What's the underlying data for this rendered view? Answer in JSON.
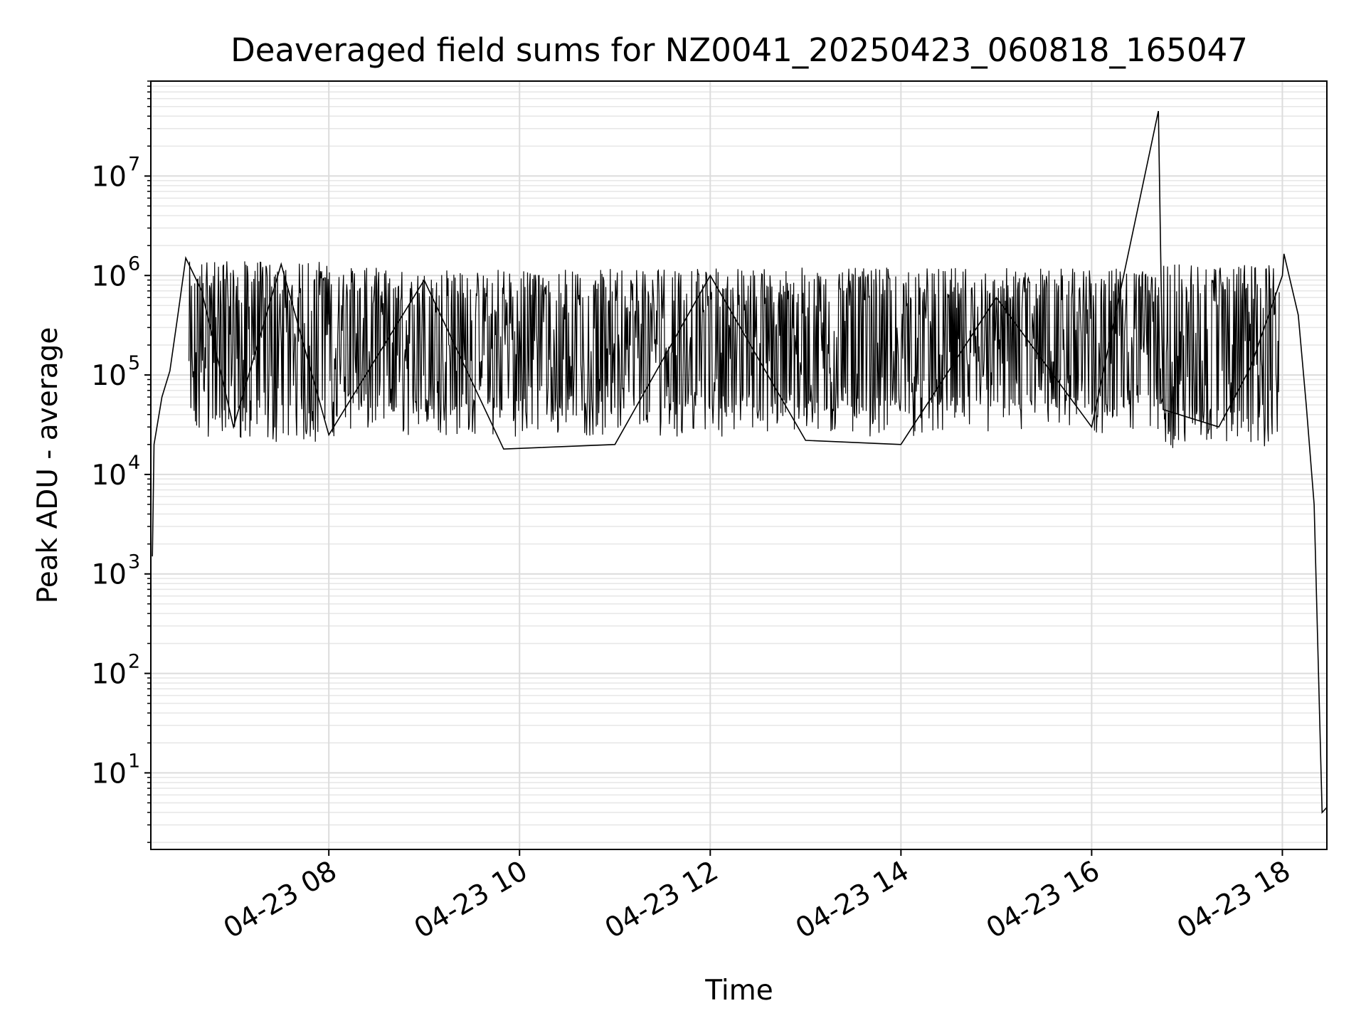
{
  "chart_data": {
    "type": "line",
    "title": "Deaveraged field sums for NZ0041_20250423_060818_165047",
    "xlabel": "Time",
    "ylabel": "Peak ADU - average",
    "yscale": "log",
    "ylim": [
      1.7,
      90000000
    ],
    "xlim": [
      "04-23 06:08",
      "04-23 18:28"
    ],
    "grid": true,
    "x_ticks": [
      "04-23 08",
      "04-23 10",
      "04-23 12",
      "04-23 14",
      "04-23 16",
      "04-23 18"
    ],
    "y_ticks": [
      {
        "base": "10",
        "exp": "1",
        "value": 10
      },
      {
        "base": "10",
        "exp": "2",
        "value": 100
      },
      {
        "base": "10",
        "exp": "3",
        "value": 1000
      },
      {
        "base": "10",
        "exp": "4",
        "value": 10000
      },
      {
        "base": "10",
        "exp": "5",
        "value": 100000
      },
      {
        "base": "10",
        "exp": "6",
        "value": 1000000
      },
      {
        "base": "10",
        "exp": "7",
        "value": 10000000
      }
    ],
    "series": [
      {
        "color": "#000000",
        "points": [
          [
            "04-23 06:09",
            1500
          ],
          [
            "04-23 06:10",
            20000
          ],
          [
            "04-23 06:15",
            60000
          ],
          [
            "04-23 06:20",
            110000
          ],
          [
            "04-23 06:25",
            400000
          ],
          [
            "04-23 06:30",
            1500000
          ],
          [
            "04-23 06:40",
            700000
          ],
          [
            "04-23 07:00",
            30000
          ],
          [
            "04-23 07:30",
            1300000
          ],
          [
            "04-23 08:00",
            25000
          ],
          [
            "04-23 09:00",
            900000
          ],
          [
            "04-23 09:50",
            18000
          ],
          [
            "04-23 11:00",
            20000
          ],
          [
            "04-23 12:00",
            1000000
          ],
          [
            "04-23 13:00",
            22000
          ],
          [
            "04-23 14:00",
            20000
          ],
          [
            "04-23 15:00",
            600000
          ],
          [
            "04-23 16:00",
            30000
          ],
          [
            "04-23 16:42",
            45000000
          ],
          [
            "04-23 16:45",
            45000
          ],
          [
            "04-23 17:20",
            30000
          ],
          [
            "04-23 17:40",
            120000
          ],
          [
            "04-23 18:00",
            1000000
          ],
          [
            "04-23 18:01",
            1650000
          ],
          [
            "04-23 18:10",
            400000
          ],
          [
            "04-23 18:15",
            50000
          ],
          [
            "04-23 18:20",
            5000
          ],
          [
            "04-23 18:25",
            4
          ],
          [
            "04-23 18:28",
            4.5
          ]
        ]
      }
    ]
  }
}
